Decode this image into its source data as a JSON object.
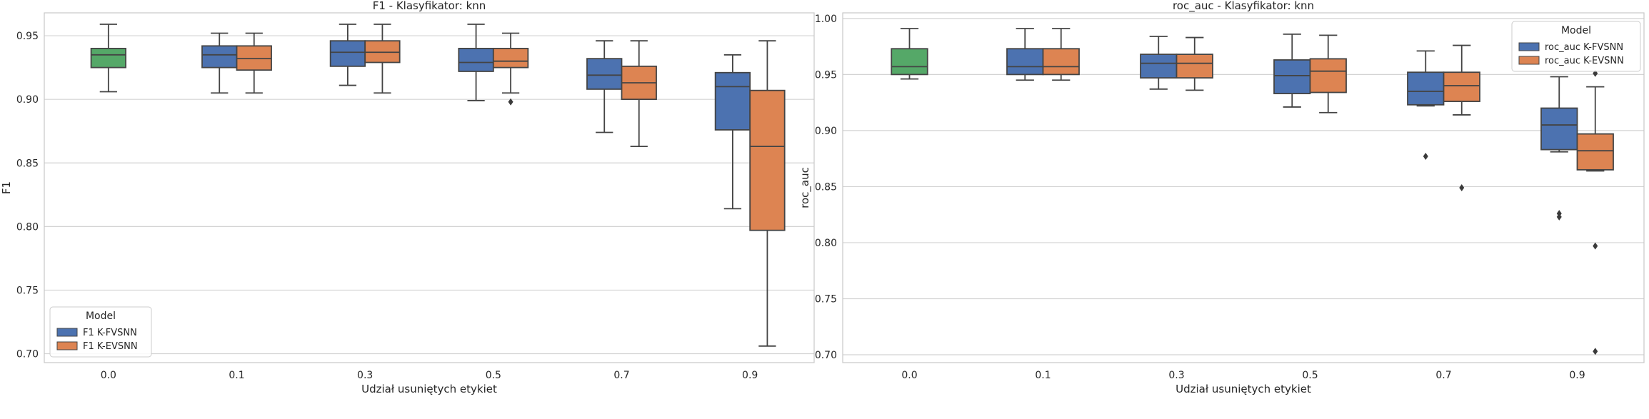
{
  "colors": {
    "blue": "#4C72B0",
    "orange": "#DD8452",
    "green": "#55A868",
    "line": "#444444",
    "grid": "#D3D3D3",
    "frame": "#C8C8C8"
  },
  "chart_data": [
    {
      "type": "box",
      "title": "F1 - Klasyfikator: knn",
      "xlabel": "Udział usuniętych etykiet",
      "ylabel": "F1",
      "categories": [
        "0.0",
        "0.1",
        "0.3",
        "0.5",
        "0.7",
        "0.9"
      ],
      "ylim": [
        0.693,
        0.968
      ],
      "yticks": [
        "0.70",
        "0.75",
        "0.80",
        "0.85",
        "0.90",
        "0.95"
      ],
      "grid": true,
      "legend": {
        "title": "Model",
        "position": "lower-left"
      },
      "series": [
        {
          "name": "F1 K-FVSNN",
          "color": "blue",
          "boxes": [
            {
              "category": "0.0",
              "min": 0.906,
              "q1": 0.925,
              "median": 0.935,
              "q3": 0.94,
              "max": 0.959,
              "outliers": [],
              "color": "green",
              "single": true
            },
            {
              "category": "0.1",
              "min": 0.905,
              "q1": 0.925,
              "median": 0.935,
              "q3": 0.942,
              "max": 0.952,
              "outliers": []
            },
            {
              "category": "0.3",
              "min": 0.911,
              "q1": 0.926,
              "median": 0.937,
              "q3": 0.946,
              "max": 0.959,
              "outliers": []
            },
            {
              "category": "0.5",
              "min": 0.899,
              "q1": 0.922,
              "median": 0.929,
              "q3": 0.94,
              "max": 0.959,
              "outliers": []
            },
            {
              "category": "0.7",
              "min": 0.874,
              "q1": 0.908,
              "median": 0.919,
              "q3": 0.932,
              "max": 0.946,
              "outliers": []
            },
            {
              "category": "0.9",
              "min": 0.814,
              "q1": 0.876,
              "median": 0.91,
              "q3": 0.921,
              "max": 0.935,
              "outliers": []
            }
          ]
        },
        {
          "name": "F1 K-EVSNN",
          "color": "orange",
          "boxes": [
            {
              "category": "0.1",
              "min": 0.905,
              "q1": 0.923,
              "median": 0.932,
              "q3": 0.942,
              "max": 0.952,
              "outliers": []
            },
            {
              "category": "0.3",
              "min": 0.905,
              "q1": 0.929,
              "median": 0.937,
              "q3": 0.946,
              "max": 0.959,
              "outliers": []
            },
            {
              "category": "0.5",
              "min": 0.905,
              "q1": 0.925,
              "median": 0.93,
              "q3": 0.94,
              "max": 0.952,
              "outliers": [
                0.898
              ]
            },
            {
              "category": "0.7",
              "min": 0.863,
              "q1": 0.9,
              "median": 0.913,
              "q3": 0.926,
              "max": 0.946,
              "outliers": []
            },
            {
              "category": "0.9",
              "min": 0.706,
              "q1": 0.797,
              "median": 0.863,
              "q3": 0.907,
              "max": 0.946,
              "outliers": []
            }
          ]
        }
      ]
    },
    {
      "type": "box",
      "title": "roc_auc - Klasyfikator: knn",
      "xlabel": "Udział usuniętych etykiet",
      "ylabel": "roc_auc",
      "categories": [
        "0.0",
        "0.1",
        "0.3",
        "0.5",
        "0.7",
        "0.9"
      ],
      "ylim": [
        0.693,
        1.005
      ],
      "yticks": [
        "0.70",
        "0.75",
        "0.80",
        "0.85",
        "0.90",
        "0.95",
        "1.00"
      ],
      "grid": true,
      "legend": {
        "title": "Model",
        "position": "top-right"
      },
      "series": [
        {
          "name": "roc_auc K-FVSNN",
          "color": "blue",
          "boxes": [
            {
              "category": "0.0",
              "min": 0.946,
              "q1": 0.95,
              "median": 0.957,
              "q3": 0.973,
              "max": 0.991,
              "outliers": [],
              "color": "green",
              "single": true
            },
            {
              "category": "0.1",
              "min": 0.945,
              "q1": 0.95,
              "median": 0.957,
              "q3": 0.973,
              "max": 0.991,
              "outliers": []
            },
            {
              "category": "0.3",
              "min": 0.937,
              "q1": 0.947,
              "median": 0.96,
              "q3": 0.968,
              "max": 0.984,
              "outliers": []
            },
            {
              "category": "0.5",
              "min": 0.921,
              "q1": 0.933,
              "median": 0.949,
              "q3": 0.963,
              "max": 0.986,
              "outliers": []
            },
            {
              "category": "0.7",
              "min": 0.922,
              "q1": 0.923,
              "median": 0.935,
              "q3": 0.952,
              "max": 0.971,
              "outliers": [
                0.877
              ]
            },
            {
              "category": "0.9",
              "min": 0.881,
              "q1": 0.883,
              "median": 0.905,
              "q3": 0.92,
              "max": 0.948,
              "outliers": [
                0.826,
                0.823
              ]
            }
          ]
        },
        {
          "name": "roc_auc K-EVSNN",
          "color": "orange",
          "boxes": [
            {
              "category": "0.1",
              "min": 0.945,
              "q1": 0.95,
              "median": 0.957,
              "q3": 0.973,
              "max": 0.991,
              "outliers": []
            },
            {
              "category": "0.3",
              "min": 0.936,
              "q1": 0.947,
              "median": 0.96,
              "q3": 0.968,
              "max": 0.983,
              "outliers": []
            },
            {
              "category": "0.5",
              "min": 0.916,
              "q1": 0.934,
              "median": 0.953,
              "q3": 0.964,
              "max": 0.985,
              "outliers": []
            },
            {
              "category": "0.7",
              "min": 0.914,
              "q1": 0.926,
              "median": 0.94,
              "q3": 0.952,
              "max": 0.976,
              "outliers": [
                0.849
              ]
            },
            {
              "category": "0.9",
              "min": 0.864,
              "q1": 0.865,
              "median": 0.882,
              "q3": 0.897,
              "max": 0.939,
              "outliers": [
                0.951,
                0.797,
                0.703
              ]
            }
          ]
        }
      ]
    }
  ]
}
